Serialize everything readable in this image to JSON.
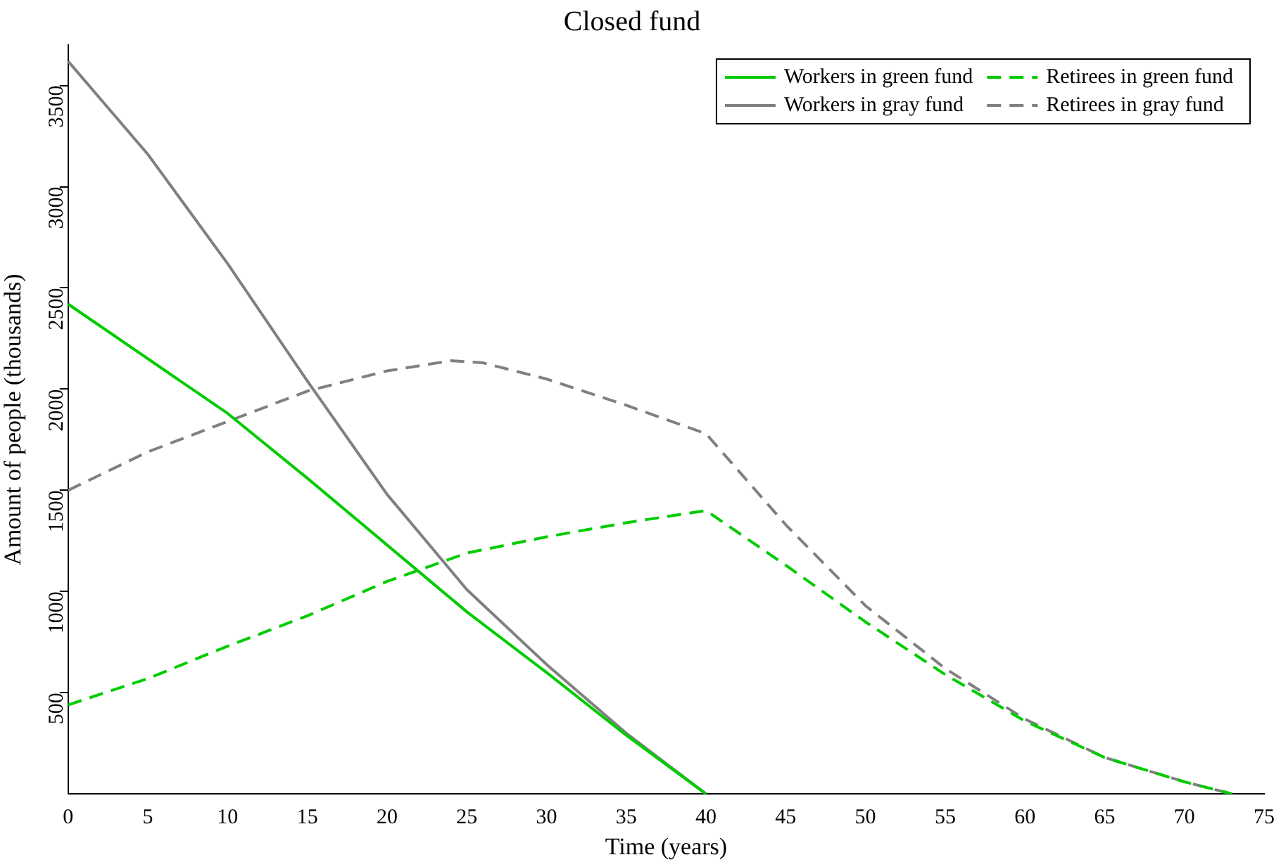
{
  "chart_data": {
    "type": "line",
    "title": "Closed fund",
    "xlabel": "Time (years)",
    "ylabel": "Amount of people (thousands)",
    "xlim": [
      0,
      75
    ],
    "xticks": [
      0,
      5,
      10,
      15,
      20,
      25,
      30,
      35,
      40,
      45,
      50,
      55,
      60,
      65,
      70,
      75
    ],
    "ylim": [
      0,
      3700
    ],
    "yticks": [
      500,
      1000,
      1500,
      2000,
      2500,
      3000,
      3500
    ],
    "grid": false,
    "legend": "top right",
    "marker": "none",
    "series": [
      {
        "name": "Workers in green fund",
        "color": "#00cc00",
        "line_style": "solid",
        "x": [
          0,
          5,
          10,
          15,
          20,
          25,
          30,
          35,
          40
        ],
        "values": [
          2420,
          2150,
          1880,
          1560,
          1230,
          900,
          600,
          290,
          0
        ]
      },
      {
        "name": "Retirees in green fund",
        "color": "#00cc00",
        "line_style": "dashed",
        "x": [
          0,
          5,
          10,
          15,
          20,
          25,
          30,
          35,
          40,
          45,
          50,
          55,
          60,
          65,
          70,
          73
        ],
        "values": [
          440,
          570,
          730,
          880,
          1050,
          1190,
          1270,
          1340,
          1400,
          1130,
          850,
          590,
          360,
          180,
          60,
          0
        ]
      },
      {
        "name": "Workers in gray fund",
        "color": "#808080",
        "line_style": "solid",
        "x": [
          0,
          5,
          10,
          15,
          20,
          25,
          30,
          35,
          40
        ],
        "values": [
          3620,
          3160,
          2620,
          2040,
          1480,
          1010,
          640,
          300,
          0
        ]
      },
      {
        "name": "Retirees in gray fund",
        "color": "#808080",
        "line_style": "dashed",
        "x": [
          0,
          5,
          10,
          15,
          20,
          24,
          26,
          30,
          35,
          40,
          45,
          50,
          55,
          60,
          65,
          70,
          73
        ],
        "values": [
          1500,
          1690,
          1840,
          1990,
          2090,
          2140,
          2130,
          2050,
          1920,
          1780,
          1330,
          930,
          620,
          370,
          180,
          60,
          0
        ]
      }
    ]
  }
}
